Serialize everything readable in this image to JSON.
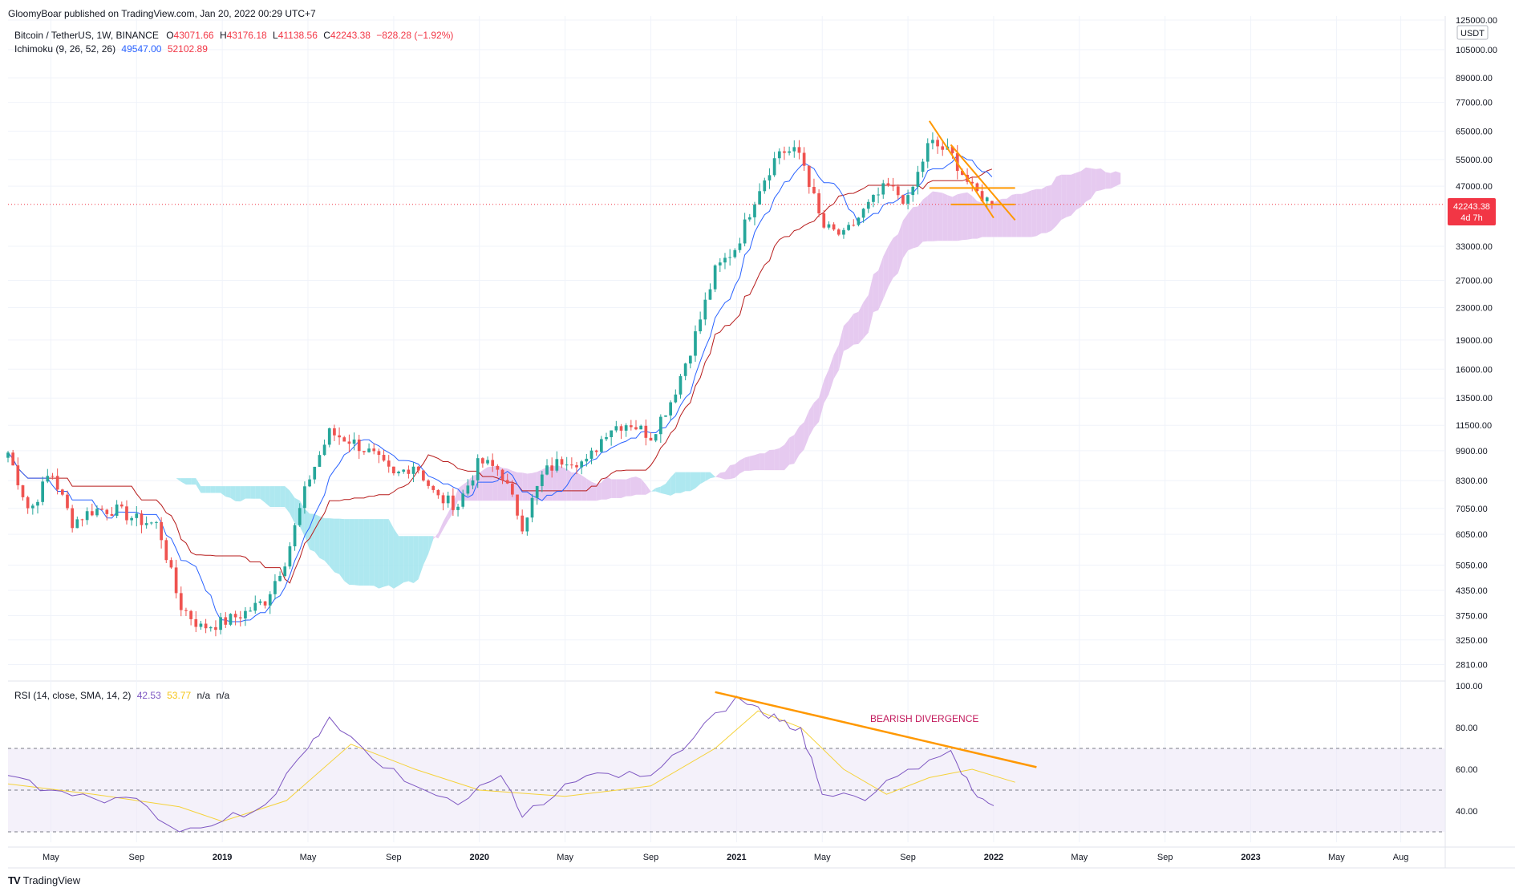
{
  "header": {
    "published": "GloomyBoar published on TradingView.com, Jan 20, 2022 00:29 UTC+7",
    "symbol": "Bitcoin / TetherUS, 1W, BINANCE",
    "o_label": "O",
    "o_value": "43071.66",
    "h_label": "H",
    "h_value": "43176.18",
    "l_label": "L",
    "l_value": "41138.56",
    "c_label": "C",
    "c_value": "42243.38",
    "change": "−828.28 (−1.92%)",
    "ichimoku_label": "Ichimoku (9, 26, 52, 26)",
    "ichimoku_v1": "49547.00",
    "ichimoku_v2": "52102.89"
  },
  "rsi_header": {
    "label": "RSI (14, close, SMA, 14, 2)",
    "v1": "42.53",
    "v2": "53.77",
    "v3": "n/a",
    "v4": "n/a"
  },
  "price_axis": {
    "currency": "USDT",
    "ticks": [
      "125000.00",
      "105000.00",
      "89000.00",
      "77000.00",
      "65000.00",
      "55000.00",
      "47000.00",
      "33000.00",
      "27000.00",
      "23000.00",
      "19000.00",
      "16000.00",
      "13500.00",
      "11500.00",
      "9900.00",
      "8300.00",
      "7050.00",
      "6050.00",
      "5050.00",
      "4350.00",
      "3750.00",
      "3250.00",
      "2810.00"
    ],
    "last_price": "42243.38",
    "countdown": "4d 7h"
  },
  "rsi_axis": {
    "ticks": [
      "100.00",
      "80.00",
      "60.00",
      "40.00"
    ]
  },
  "time_axis": {
    "labels": [
      {
        "text": "May",
        "bold": false
      },
      {
        "text": "Sep",
        "bold": false
      },
      {
        "text": "2019",
        "bold": true
      },
      {
        "text": "May",
        "bold": false
      },
      {
        "text": "Sep",
        "bold": false
      },
      {
        "text": "2020",
        "bold": true
      },
      {
        "text": "May",
        "bold": false
      },
      {
        "text": "Sep",
        "bold": false
      },
      {
        "text": "2021",
        "bold": true
      },
      {
        "text": "May",
        "bold": false
      },
      {
        "text": "Sep",
        "bold": false
      },
      {
        "text": "2022",
        "bold": true
      },
      {
        "text": "May",
        "bold": false
      },
      {
        "text": "Sep",
        "bold": false
      },
      {
        "text": "2023",
        "bold": true
      },
      {
        "text": "May",
        "bold": false
      },
      {
        "text": "Aug",
        "bold": false
      }
    ]
  },
  "annotation": {
    "text": "BEARISH DIVERGENCE",
    "color": "#c2185b"
  },
  "brand": {
    "text": "TradingView",
    "logo": "TV"
  },
  "colors": {
    "up": "#26a69a",
    "down": "#ef5350",
    "tenkan": "#2962ff",
    "kijun": "#b71c1c",
    "cloud_bull": "#a5e6ee",
    "cloud_bear": "#e3c4ee",
    "rsi": "#7e57c2",
    "rsi_ma": "#f5d23a",
    "trendline": "#ff9800",
    "price_line": "#f23645"
  },
  "chart_data": [
    {
      "type": "candlestick",
      "title": "Bitcoin / TetherUS, 1W, BINANCE",
      "scale": "log",
      "ylim": [
        2600,
        128000
      ],
      "x_range": [
        "2018-03",
        "2023-10"
      ],
      "last": {
        "open": 43071.66,
        "high": 43176.18,
        "low": 41138.56,
        "close": 42243.38
      },
      "close_path": [
        {
          "x": "2018-03",
          "y": 9800
        },
        {
          "x": "2018-04",
          "y": 6900
        },
        {
          "x": "2018-05",
          "y": 8800
        },
        {
          "x": "2018-06",
          "y": 6500
        },
        {
          "x": "2018-07",
          "y": 7000
        },
        {
          "x": "2018-08",
          "y": 7000
        },
        {
          "x": "2018-09",
          "y": 6600
        },
        {
          "x": "2018-10",
          "y": 6400
        },
        {
          "x": "2018-11",
          "y": 4000
        },
        {
          "x": "2018-12",
          "y": 3500
        },
        {
          "x": "2019-01",
          "y": 3600
        },
        {
          "x": "2019-02",
          "y": 3800
        },
        {
          "x": "2019-03",
          "y": 4100
        },
        {
          "x": "2019-04",
          "y": 5300
        },
        {
          "x": "2019-05",
          "y": 8300
        },
        {
          "x": "2019-06",
          "y": 11000
        },
        {
          "x": "2019-07",
          "y": 10500
        },
        {
          "x": "2019-08",
          "y": 9700
        },
        {
          "x": "2019-09",
          "y": 8500
        },
        {
          "x": "2019-10",
          "y": 9200
        },
        {
          "x": "2019-11",
          "y": 7500
        },
        {
          "x": "2019-12",
          "y": 7200
        },
        {
          "x": "2020-01",
          "y": 9300
        },
        {
          "x": "2020-02",
          "y": 8800
        },
        {
          "x": "2020-03",
          "y": 6400
        },
        {
          "x": "2020-04",
          "y": 8700
        },
        {
          "x": "2020-05",
          "y": 9500
        },
        {
          "x": "2020-06",
          "y": 9200
        },
        {
          "x": "2020-07",
          "y": 11300
        },
        {
          "x": "2020-08",
          "y": 11700
        },
        {
          "x": "2020-09",
          "y": 10800
        },
        {
          "x": "2020-10",
          "y": 13500
        },
        {
          "x": "2020-11",
          "y": 19000
        },
        {
          "x": "2020-12",
          "y": 28500
        },
        {
          "x": "2021-01",
          "y": 33000
        },
        {
          "x": "2021-02",
          "y": 46000
        },
        {
          "x": "2021-03",
          "y": 58000
        },
        {
          "x": "2021-04",
          "y": 57000
        },
        {
          "x": "2021-05",
          "y": 37000
        },
        {
          "x": "2021-06",
          "y": 35000
        },
        {
          "x": "2021-07",
          "y": 41000
        },
        {
          "x": "2021-08",
          "y": 47000
        },
        {
          "x": "2021-09",
          "y": 43000
        },
        {
          "x": "2021-10",
          "y": 61000
        },
        {
          "x": "2021-11",
          "y": 57000
        },
        {
          "x": "2021-12",
          "y": 46000
        },
        {
          "x": "2022-01",
          "y": 42243
        }
      ]
    },
    {
      "type": "line",
      "title": "RSI (14, close, SMA, 14, 2)",
      "ylim": [
        25,
        100
      ],
      "bands": [
        30,
        50,
        70
      ],
      "series": [
        {
          "name": "RSI",
          "values": [
            {
              "x": "2018-03",
              "y": 57
            },
            {
              "x": "2018-05",
              "y": 50
            },
            {
              "x": "2018-07",
              "y": 46
            },
            {
              "x": "2018-09",
              "y": 46
            },
            {
              "x": "2018-11",
              "y": 30
            },
            {
              "x": "2019-01",
              "y": 35
            },
            {
              "x": "2019-03",
              "y": 43
            },
            {
              "x": "2019-05",
              "y": 70
            },
            {
              "x": "2019-06",
              "y": 85
            },
            {
              "x": "2019-08",
              "y": 65
            },
            {
              "x": "2019-10",
              "y": 52
            },
            {
              "x": "2019-12",
              "y": 43
            },
            {
              "x": "2020-02",
              "y": 57
            },
            {
              "x": "2020-03",
              "y": 37
            },
            {
              "x": "2020-05",
              "y": 53
            },
            {
              "x": "2020-07",
              "y": 58
            },
            {
              "x": "2020-09",
              "y": 57
            },
            {
              "x": "2020-11",
              "y": 75
            },
            {
              "x": "2021-01",
              "y": 95
            },
            {
              "x": "2021-02",
              "y": 90
            },
            {
              "x": "2021-03",
              "y": 83
            },
            {
              "x": "2021-04",
              "y": 80
            },
            {
              "x": "2021-05",
              "y": 48
            },
            {
              "x": "2021-07",
              "y": 45
            },
            {
              "x": "2021-09",
              "y": 60
            },
            {
              "x": "2021-11",
              "y": 69
            },
            {
              "x": "2021-12",
              "y": 50
            },
            {
              "x": "2022-01",
              "y": 42.53
            }
          ]
        },
        {
          "name": "RSI-based MA",
          "values": [
            {
              "x": "2018-03",
              "y": 53
            },
            {
              "x": "2018-07",
              "y": 48
            },
            {
              "x": "2018-11",
              "y": 42
            },
            {
              "x": "2019-01",
              "y": 35
            },
            {
              "x": "2019-04",
              "y": 45
            },
            {
              "x": "2019-07",
              "y": 72
            },
            {
              "x": "2019-10",
              "y": 60
            },
            {
              "x": "2020-01",
              "y": 50
            },
            {
              "x": "2020-05",
              "y": 47
            },
            {
              "x": "2020-09",
              "y": 52
            },
            {
              "x": "2020-12",
              "y": 70
            },
            {
              "x": "2021-02",
              "y": 88
            },
            {
              "x": "2021-04",
              "y": 80
            },
            {
              "x": "2021-06",
              "y": 60
            },
            {
              "x": "2021-08",
              "y": 48
            },
            {
              "x": "2021-10",
              "y": 56
            },
            {
              "x": "2021-12",
              "y": 60
            },
            {
              "x": "2022-02",
              "y": 53.77
            }
          ]
        }
      ]
    }
  ]
}
